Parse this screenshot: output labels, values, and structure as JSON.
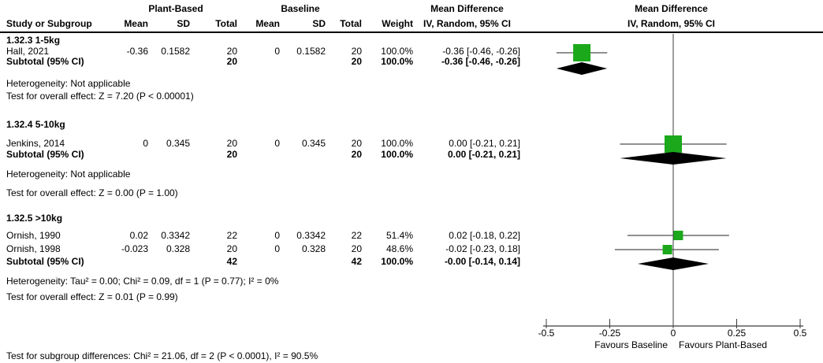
{
  "header": {
    "group_plant_based": "Plant-Based",
    "group_baseline": "Baseline",
    "md_left": "Mean Difference",
    "md_right": "Mean Difference",
    "col_study": "Study or Subgroup",
    "col_mean_pb": "Mean",
    "col_sd_pb": "SD",
    "col_total_pb": "Total",
    "col_mean_bl": "Mean",
    "col_sd_bl": "SD",
    "col_total_bl": "Total",
    "col_weight": "Weight",
    "iv_left": "IV, Random, 95% CI",
    "iv_right": "IV, Random, 95% CI"
  },
  "chart_data": {
    "type": "forest",
    "effect_measure": "Mean Difference",
    "method": "IV, Random, 95% CI",
    "axis": {
      "min": -0.5,
      "max": 0.5,
      "ticks": [
        {
          "label": "-0.5",
          "value": -0.5
        },
        {
          "label": "-0.25",
          "value": -0.25
        },
        {
          "label": "0",
          "value": 0
        },
        {
          "label": "0.25",
          "value": 0.25
        },
        {
          "label": "0.5",
          "value": 0.5
        }
      ],
      "favours_left": "Favours Baseline",
      "favours_right": "Favours Plant-Based"
    },
    "colors": {
      "square": "#1BA81B",
      "diamond": "#000000",
      "ci_line": "#4d4d4d",
      "axis": "#3c3c3c"
    },
    "subgroups": [
      {
        "label": "1.32.3 1-5kg",
        "studies": [
          {
            "study": "Hall, 2021",
            "pb_mean": "-0.36",
            "pb_sd": "0.1582",
            "pb_total": "20",
            "bl_mean": "0",
            "bl_sd": "0.1582",
            "bl_total": "20",
            "weight": "100.0%",
            "ci": "-0.36 [-0.46, -0.26]",
            "est": -0.36,
            "lo": -0.46,
            "hi": -0.26,
            "weight_pct": 100.0
          }
        ],
        "subtotal": {
          "study": "Subtotal (95% CI)",
          "pb_total": "20",
          "bl_total": "20",
          "weight": "100.0%",
          "ci": "-0.36 [-0.46, -0.26]",
          "est": -0.36,
          "lo": -0.46,
          "hi": -0.26
        },
        "heterogeneity": "Heterogeneity: Not applicable",
        "overall_effect": "Test for overall effect: Z = 7.20 (P < 0.00001)"
      },
      {
        "label": "1.32.4 5-10kg",
        "studies": [
          {
            "study": "Jenkins, 2014",
            "pb_mean": "0",
            "pb_sd": "0.345",
            "pb_total": "20",
            "bl_mean": "0",
            "bl_sd": "0.345",
            "bl_total": "20",
            "weight": "100.0%",
            "ci": "0.00 [-0.21, 0.21]",
            "est": 0.0,
            "lo": -0.21,
            "hi": 0.21,
            "weight_pct": 100.0
          }
        ],
        "subtotal": {
          "study": "Subtotal (95% CI)",
          "pb_total": "20",
          "bl_total": "20",
          "weight": "100.0%",
          "ci": "0.00 [-0.21, 0.21]",
          "est": 0.0,
          "lo": -0.21,
          "hi": 0.21
        },
        "heterogeneity": "Heterogeneity: Not applicable",
        "overall_effect": "Test for overall effect: Z = 0.00 (P = 1.00)"
      },
      {
        "label": "1.32.5 >10kg",
        "studies": [
          {
            "study": "Ornish, 1990",
            "pb_mean": "0.02",
            "pb_sd": "0.3342",
            "pb_total": "22",
            "bl_mean": "0",
            "bl_sd": "0.3342",
            "bl_total": "22",
            "weight": "51.4%",
            "ci": "0.02 [-0.18, 0.22]",
            "est": 0.02,
            "lo": -0.18,
            "hi": 0.22,
            "weight_pct": 51.4
          },
          {
            "study": "Ornish, 1998",
            "pb_mean": "-0.023",
            "pb_sd": "0.328",
            "pb_total": "20",
            "bl_mean": "0",
            "bl_sd": "0.328",
            "bl_total": "20",
            "weight": "48.6%",
            "ci": "-0.02 [-0.23, 0.18]",
            "est": -0.023,
            "lo": -0.23,
            "hi": 0.18,
            "weight_pct": 48.6
          }
        ],
        "subtotal": {
          "study": "Subtotal (95% CI)",
          "pb_total": "42",
          "bl_total": "42",
          "weight": "100.0%",
          "ci": "-0.00 [-0.14, 0.14]",
          "est": 0.0,
          "lo": -0.14,
          "hi": 0.14
        },
        "heterogeneity": "Heterogeneity: Tau² = 0.00; Chi² = 0.09, df = 1 (P = 0.77); I² = 0%",
        "overall_effect": "Test for overall effect: Z = 0.01 (P = 0.99)"
      }
    ],
    "subgroup_test": "Test for subgroup differences: Chi² = 21.06, df = 2 (P < 0.0001), I² = 90.5%"
  }
}
